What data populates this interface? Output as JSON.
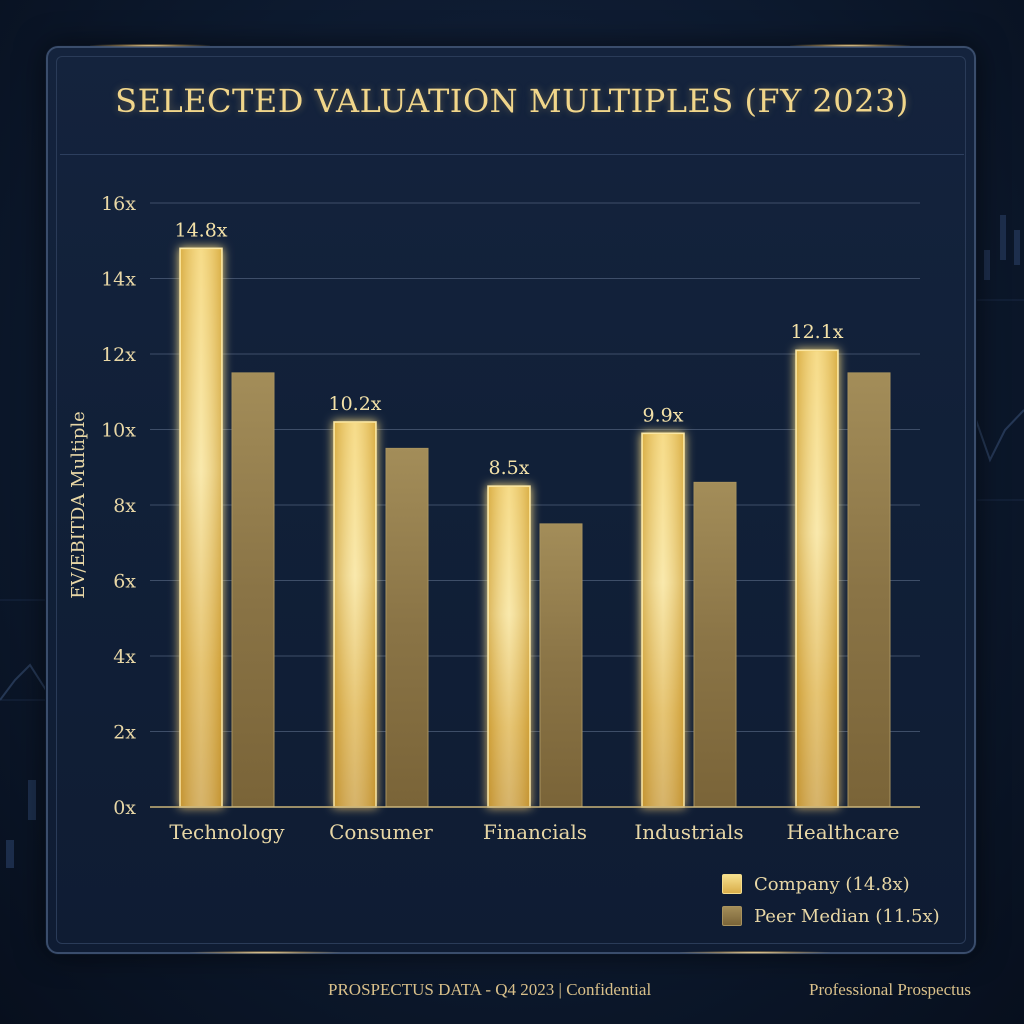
{
  "chart_data": {
    "type": "bar",
    "title": "SELECTED VALUATION MULTIPLES (FY 2023)",
    "ylabel": "EV/EBITDA Multiple",
    "xlabel": "",
    "categories": [
      "Technology",
      "Consumer",
      "Financials",
      "Industrials",
      "Healthcare"
    ],
    "series": [
      {
        "name": "Company (14.8x)",
        "values": [
          14.8,
          10.2,
          8.5,
          9.9,
          12.1
        ],
        "data_labels": [
          "14.8x",
          "10.2x",
          "8.5x",
          "9.9x",
          "12.1x"
        ],
        "color": "#e9c45a"
      },
      {
        "name": "Peer Median (11.5x)",
        "values": [
          11.5,
          9.5,
          7.5,
          8.6,
          11.5
        ],
        "color": "#9a8455"
      }
    ],
    "ylim": [
      0,
      16
    ],
    "yticks": [
      0,
      2,
      4,
      6,
      8,
      10,
      12,
      14,
      16
    ],
    "ytick_labels": [
      "0x",
      "2x",
      "4x",
      "6x",
      "8x",
      "10x",
      "12x",
      "14x",
      "16x"
    ],
    "grid": true,
    "legend_position": "bottom-right"
  },
  "footer": {
    "left": "PROSPECTUS DATA - Q4 2023 |  Confidential",
    "right": "Professional Prospectus"
  },
  "colors": {
    "background": "#0d1a2f",
    "panel": "#112038",
    "gold_text": "#f1d68a",
    "axis_text": "#e8d7a6",
    "gridline": "#4a5a75"
  }
}
